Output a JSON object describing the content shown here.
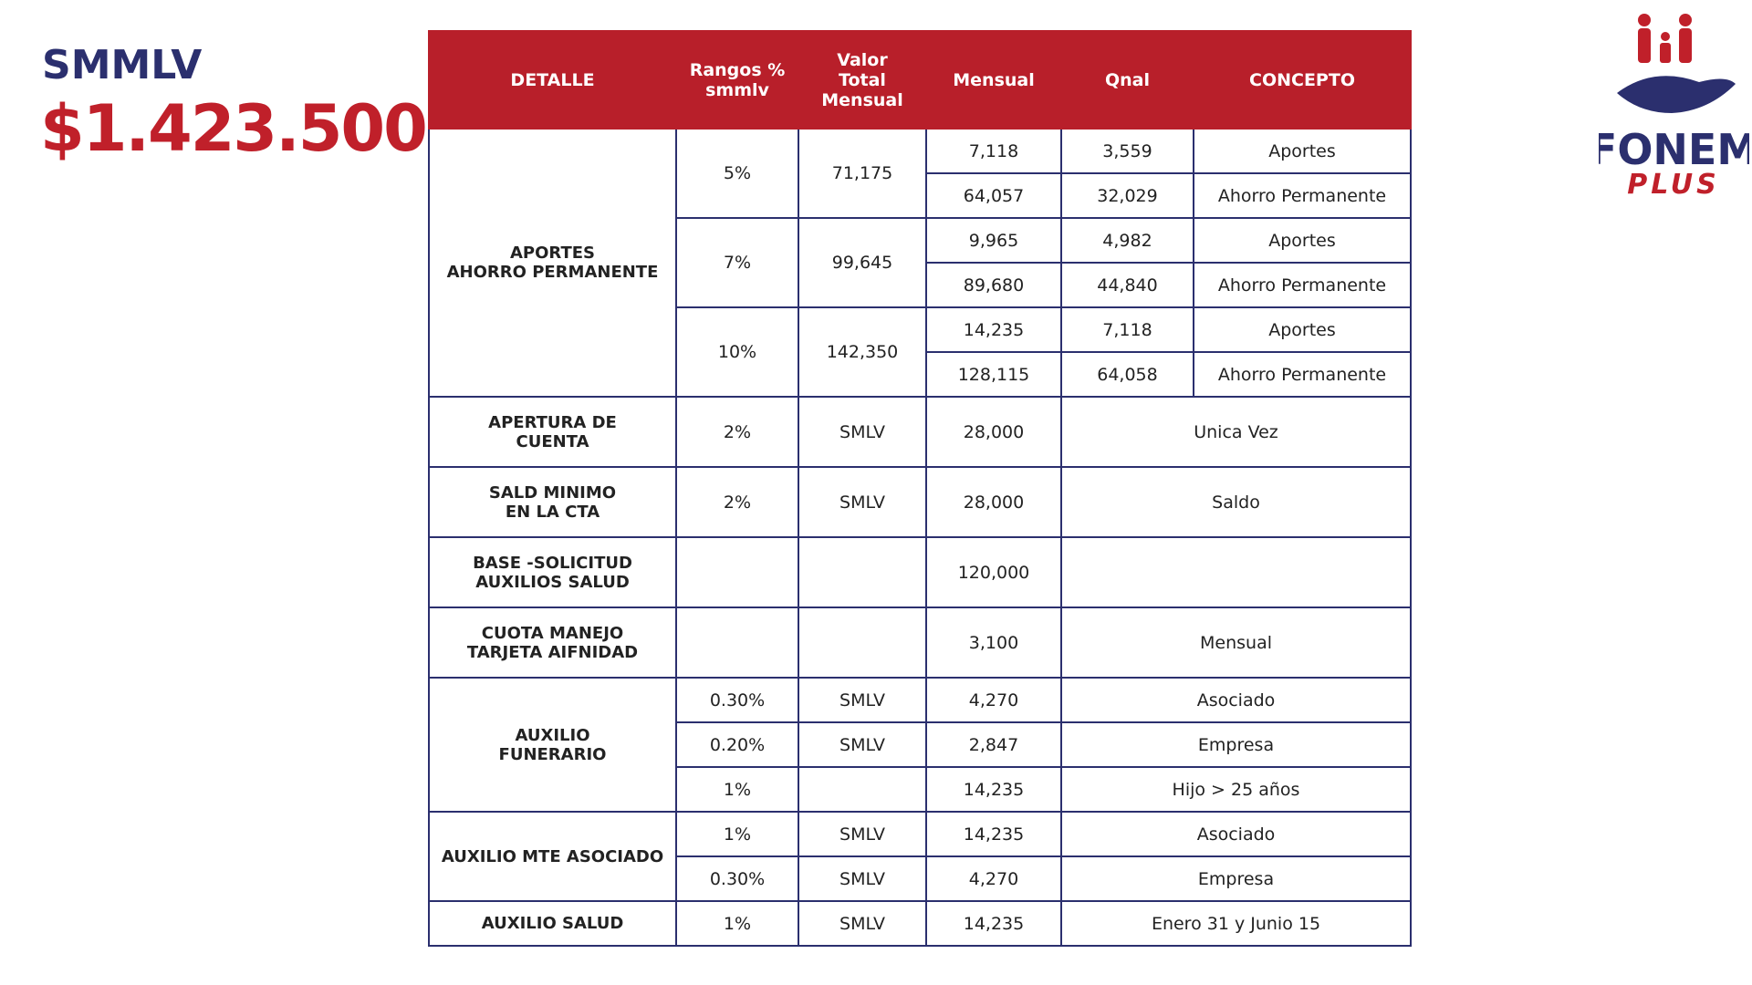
{
  "header": {
    "label": "SMMLV",
    "value": "$1.423.500"
  },
  "logo": {
    "name": "FONEM",
    "tag": "PLUS"
  },
  "table": {
    "columns": [
      "DETALLE",
      "Rangos %\nsmmlv",
      "Valor\nTotal\nMensual",
      "Mensual",
      "Qnal",
      "CONCEPTO"
    ],
    "aportes": {
      "detalle": "APORTES\nAHORRO PERMANENTE",
      "ranges": [
        {
          "rango": "5%",
          "valor": "71,175",
          "items": [
            {
              "mensual": "7,118",
              "qnal": "3,559",
              "concepto": "Aportes"
            },
            {
              "mensual": "64,057",
              "qnal": "32,029",
              "concepto": "Ahorro Permanente"
            }
          ]
        },
        {
          "rango": "7%",
          "valor": "99,645",
          "items": [
            {
              "mensual": "9,965",
              "qnal": "4,982",
              "concepto": "Aportes"
            },
            {
              "mensual": "89,680",
              "qnal": "44,840",
              "concepto": "Ahorro Permanente"
            }
          ]
        },
        {
          "rango": "10%",
          "valor": "142,350",
          "items": [
            {
              "mensual": "14,235",
              "qnal": "7,118",
              "concepto": "Aportes"
            },
            {
              "mensual": "128,115",
              "qnal": "64,058",
              "concepto": "Ahorro Permanente"
            }
          ]
        }
      ]
    },
    "groups": [
      {
        "detalle": "APERTURA DE\nCUENTA",
        "items": [
          {
            "rango": "2%",
            "valor": "SMLV",
            "mensual": "28,000",
            "concepto": "Unica Vez"
          }
        ]
      },
      {
        "detalle": "SALD MINIMO\nEN LA CTA",
        "items": [
          {
            "rango": "2%",
            "valor": "SMLV",
            "mensual": "28,000",
            "concepto": "Saldo"
          }
        ]
      },
      {
        "detalle": "BASE -SOLICITUD\nAUXILIOS SALUD",
        "items": [
          {
            "mensual": "120,000"
          }
        ]
      },
      {
        "detalle": "CUOTA MANEJO\nTARJETA AIFNIDAD",
        "items": [
          {
            "mensual": "3,100",
            "concepto": "Mensual"
          }
        ]
      },
      {
        "detalle": "AUXILIO\nFUNERARIO",
        "items": [
          {
            "rango": "0.30%",
            "valor": "SMLV",
            "mensual": "4,270",
            "concepto": "Asociado"
          },
          {
            "rango": "0.20%",
            "valor": "SMLV",
            "mensual": "2,847",
            "concepto": "Empresa"
          },
          {
            "rango": "1%",
            "mensual": "14,235",
            "concepto": "Hijo > 25 años"
          }
        ]
      },
      {
        "detalle": "AUXILIO MTE ASOCIADO",
        "items": [
          {
            "rango": "1%",
            "valor": "SMLV",
            "mensual": "14,235",
            "concepto": "Asociado"
          },
          {
            "rango": "0.30%",
            "valor": "SMLV",
            "mensual": "4,270",
            "concepto": "Empresa"
          }
        ]
      },
      {
        "detalle": "AUXILIO SALUD",
        "items": [
          {
            "rango": "1%",
            "valor": "SMLV",
            "mensual": "14,235",
            "concepto": "Enero 31 y Junio 15"
          }
        ]
      }
    ]
  }
}
